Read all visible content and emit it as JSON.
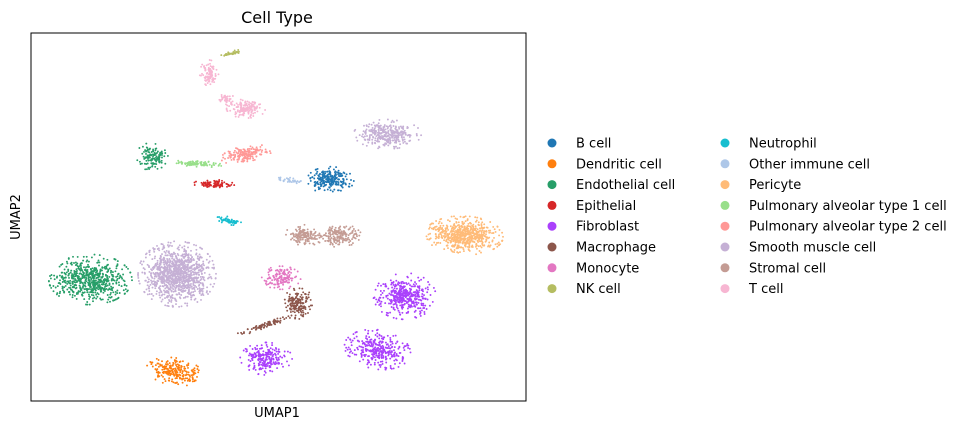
{
  "chart_data": {
    "type": "scatter",
    "title": "Cell Type",
    "xlabel": "UMAP1",
    "ylabel": "UMAP2",
    "xlim": [
      0,
      100
    ],
    "ylim": [
      0,
      100
    ],
    "grid": false,
    "ticks": "none",
    "legend_position": "right",
    "legend_columns": 2,
    "series": [
      {
        "name": "B cell",
        "color": "#1f77b4",
        "clusters": [
          {
            "cx": 60.5,
            "cy": 60.0,
            "rx": 4.5,
            "ry": 3.5,
            "n": 240,
            "angle": 0
          }
        ]
      },
      {
        "name": "Dendritic cell",
        "color": "#ff7f0e",
        "clusters": [
          {
            "cx": 29.0,
            "cy": 8.0,
            "rx": 5.5,
            "ry": 3.5,
            "n": 240,
            "angle": -15
          }
        ]
      },
      {
        "name": "Endothelial cell",
        "color": "#279e68",
        "clusters": [
          {
            "cx": 12.0,
            "cy": 33.0,
            "rx": 8.0,
            "ry": 6.5,
            "n": 650,
            "angle": 0
          },
          {
            "cx": 24.5,
            "cy": 66.5,
            "rx": 3.0,
            "ry": 3.8,
            "n": 130,
            "angle": 0
          }
        ]
      },
      {
        "name": "Epithelial",
        "color": "#d62728",
        "clusters": [
          {
            "cx": 37.0,
            "cy": 59.0,
            "rx": 4.0,
            "ry": 1.2,
            "n": 90,
            "angle": 0
          }
        ]
      },
      {
        "name": "Fibroblast",
        "color": "#aa40fc",
        "clusters": [
          {
            "cx": 75.5,
            "cy": 28.5,
            "rx": 6.0,
            "ry": 6.0,
            "n": 420,
            "angle": 0
          },
          {
            "cx": 70.0,
            "cy": 14.0,
            "rx": 6.5,
            "ry": 5.0,
            "n": 330,
            "angle": -20
          },
          {
            "cx": 47.5,
            "cy": 11.5,
            "rx": 5.0,
            "ry": 4.2,
            "n": 230,
            "angle": 0
          }
        ]
      },
      {
        "name": "Macrophage",
        "color": "#8c564b",
        "clusters": [
          {
            "cx": 54.0,
            "cy": 26.5,
            "rx": 3.0,
            "ry": 4.0,
            "n": 170,
            "angle": 0
          },
          {
            "cx": 47.0,
            "cy": 20.5,
            "rx": 6.0,
            "ry": 0.8,
            "n": 90,
            "angle": 25
          }
        ]
      },
      {
        "name": "Monocyte",
        "color": "#e377c2",
        "clusters": [
          {
            "cx": 50.5,
            "cy": 33.5,
            "rx": 3.8,
            "ry": 3.0,
            "n": 150,
            "angle": 0
          }
        ]
      },
      {
        "name": "NK cell",
        "color": "#b5bd61",
        "clusters": [
          {
            "cx": 40.5,
            "cy": 94.5,
            "rx": 2.2,
            "ry": 0.5,
            "n": 40,
            "angle": 20
          }
        ]
      },
      {
        "name": "Neutrophil",
        "color": "#17becf",
        "clusters": [
          {
            "cx": 40.0,
            "cy": 49.0,
            "rx": 2.5,
            "ry": 1.0,
            "n": 60,
            "angle": -15
          }
        ]
      },
      {
        "name": "Other immune cell",
        "color": "#aec7e8",
        "clusters": [
          {
            "cx": 52.0,
            "cy": 60.0,
            "rx": 3.0,
            "ry": 0.7,
            "n": 35,
            "angle": -15
          }
        ]
      },
      {
        "name": "Pericyte",
        "color": "#ffbb78",
        "clusters": [
          {
            "cx": 87.5,
            "cy": 45.0,
            "rx": 7.5,
            "ry": 5.0,
            "n": 620,
            "angle": -5
          }
        ]
      },
      {
        "name": "Pulmonary alveolar type 1 cell",
        "color": "#98df8a",
        "clusters": [
          {
            "cx": 33.5,
            "cy": 64.5,
            "rx": 5.0,
            "ry": 0.8,
            "n": 90,
            "angle": -5
          }
        ]
      },
      {
        "name": "Pulmonary alveolar type 2 cell",
        "color": "#ff9896",
        "clusters": [
          {
            "cx": 43.5,
            "cy": 67.0,
            "rx": 5.0,
            "ry": 2.2,
            "n": 180,
            "angle": 15
          }
        ]
      },
      {
        "name": "Smooth muscle cell",
        "color": "#c5b0d5",
        "clusters": [
          {
            "cx": 29.5,
            "cy": 34.5,
            "rx": 7.5,
            "ry": 8.5,
            "n": 1100,
            "angle": 0
          },
          {
            "cx": 72.0,
            "cy": 72.5,
            "rx": 6.5,
            "ry": 3.8,
            "n": 330,
            "angle": 0
          }
        ]
      },
      {
        "name": "Stromal cell",
        "color": "#c49c94",
        "clusters": [
          {
            "cx": 55.0,
            "cy": 45.0,
            "rx": 3.5,
            "ry": 3.0,
            "n": 140,
            "angle": 0
          },
          {
            "cx": 62.0,
            "cy": 45.0,
            "rx": 4.5,
            "ry": 3.0,
            "n": 180,
            "angle": 0
          }
        ]
      },
      {
        "name": "T cell",
        "color": "#f7b6d2",
        "clusters": [
          {
            "cx": 36.0,
            "cy": 89.0,
            "rx": 1.8,
            "ry": 3.5,
            "n": 110,
            "angle": 0
          },
          {
            "cx": 43.5,
            "cy": 79.5,
            "rx": 3.8,
            "ry": 2.5,
            "n": 150,
            "angle": 0
          },
          {
            "cx": 39.5,
            "cy": 82.0,
            "rx": 1.6,
            "ry": 1.6,
            "n": 40,
            "angle": 0
          }
        ]
      }
    ]
  }
}
